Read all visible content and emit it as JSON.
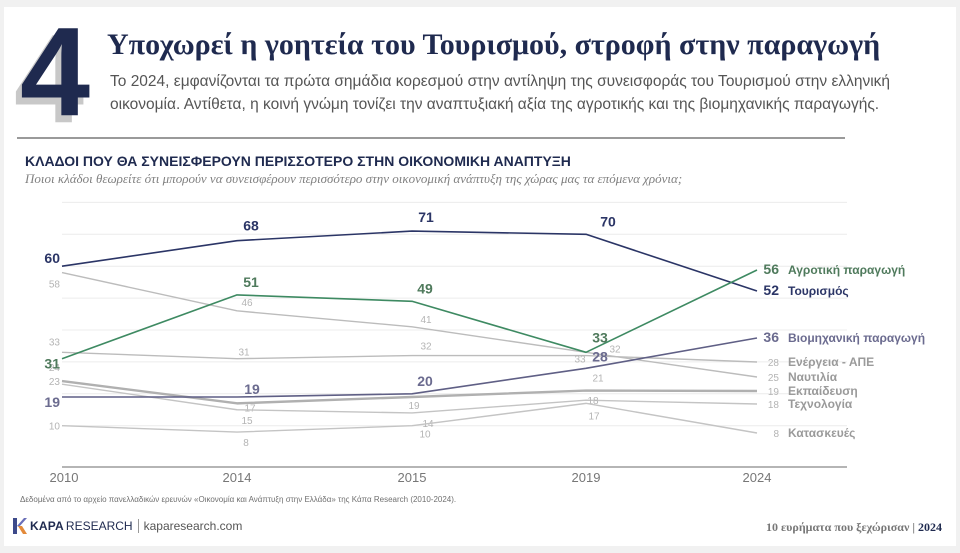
{
  "header": {
    "number": "4",
    "title": "Υποχωρεί η γοητεία του Τουρισμού, στροφή στην παραγωγή",
    "subtitle": "Το 2024, εμφανίζονται τα πρώτα σημάδια κορεσμού στην αντίληψη της συνεισφοράς του Τουρισμού στην ελληνική οικονομία. Αντίθετα, η κοινή γνώμη τονίζει την αναπτυξιακή αξία της αγροτικής και της βιομηχανικής παραγωγής."
  },
  "chart_data": {
    "type": "line",
    "title": "ΚΛΑΔΟΙ ΠΟΥ ΘΑ ΣΥΝΕΙΣΦΕΡΟΥΝ ΠΕΡΙΣΣΟΤΕΡΟ ΣΤΗΝ ΟΙΚΟΝΟΜΙΚΗ ΑΝΑΠΤΥΞΗ",
    "subtitle": "Ποιοι κλάδοι θεωρείτε ότι μπορούν να συνεισφέρουν περισσότερο στην οικονομική ανάπτυξη της χώρας μας τα επόμενα χρόνια;",
    "xlabel": "",
    "ylabel": "",
    "x": [
      "2010",
      "2014",
      "2015",
      "2019",
      "2024"
    ],
    "ylim": [
      0,
      80
    ],
    "grid": true,
    "legend": "right (inline end labels)",
    "series": [
      {
        "name": "Τουρισμός",
        "values": [
          60,
          68,
          71,
          70,
          52
        ],
        "color": "#2b3566",
        "emphasis": true
      },
      {
        "name": "Αγροτική παραγωγή",
        "values": [
          31,
          51,
          49,
          33,
          56
        ],
        "color": "#3e8a62",
        "label_color": "#4f7a5c",
        "emphasis": true
      },
      {
        "name": "Βιομηχανική παραγωγή",
        "values": [
          19,
          19,
          20,
          28,
          36
        ],
        "color": "#5f5f85",
        "label_color": "#6b6b8f",
        "emphasis": true
      },
      {
        "name": "Ενέργεια - ΑΠΕ",
        "values": [
          33,
          31,
          32,
          32,
          28
        ],
        "color": "#bcbcbc",
        "emphasis": false
      },
      {
        "name": "Ναυτιλία",
        "values": [
          58,
          46,
          41,
          33,
          25
        ],
        "color": "#bcbcbc",
        "emphasis": false
      },
      {
        "name": "Εκπαίδευση",
        "values": [
          24,
          17,
          19,
          21,
          19
        ],
        "color": "#b0b0b0",
        "emphasis": false
      },
      {
        "name": "Τεχνολογία",
        "values": [
          23,
          15,
          14,
          18,
          18
        ],
        "color": "#c4c4c4",
        "emphasis": false
      },
      {
        "name": "Κατασκευές",
        "values": [
          10,
          8,
          10,
          17,
          8
        ],
        "color": "#c4c4c4",
        "emphasis": false
      }
    ]
  },
  "footer": {
    "source": "Δεδομένα από το αρχείο πανελλαδικών ερευνών «Οικονομία και Ανάπτυξη στην Ελλάδα» της Κάπα Research (2010-2024).",
    "logo_kapa": "KAPA",
    "logo_research": "RESEARCH",
    "url": "kaparesearch.com",
    "right_text": "10 ευρήματα που ξεχώρισαν | ",
    "right_year": "2024"
  }
}
